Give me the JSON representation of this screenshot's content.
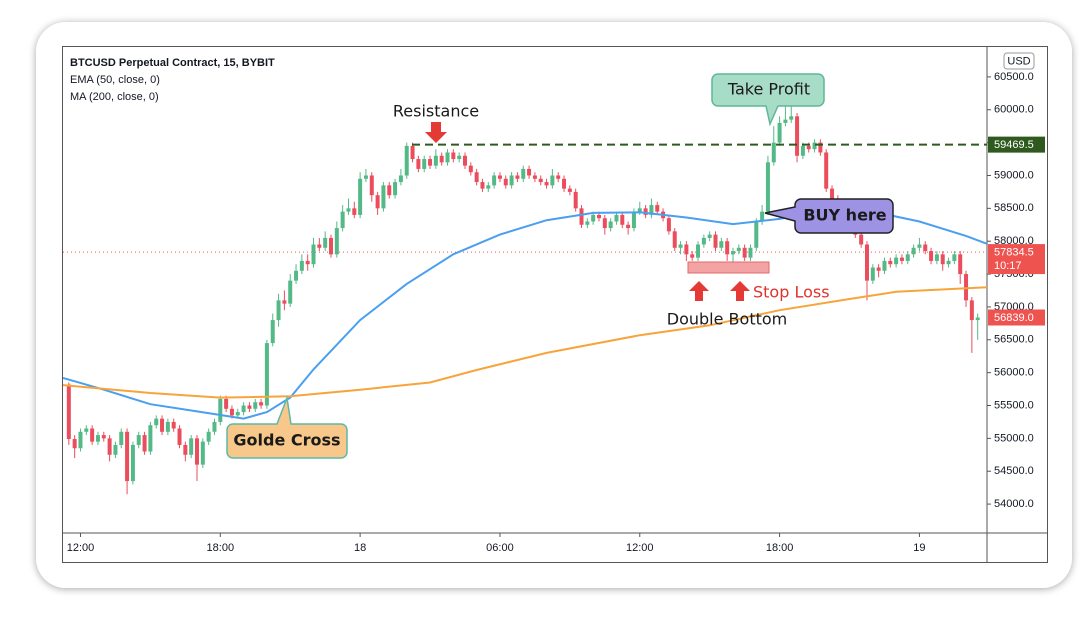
{
  "chart_data": {
    "type": "candlestick",
    "title": "BTCUSD Perpetual Contract, 15, BYBIT",
    "currency": "USD",
    "xlim": [
      -0.75,
      38.9
    ],
    "ylim": [
      53560,
      60955
    ],
    "grid": false,
    "xticks": [
      {
        "value": 0,
        "label": "12:00"
      },
      {
        "value": 6,
        "label": "18:00"
      },
      {
        "value": 12,
        "label": "18"
      },
      {
        "value": 18,
        "label": "06:00"
      },
      {
        "value": 24,
        "label": "12:00"
      },
      {
        "value": 30,
        "label": "18:00"
      },
      {
        "value": 36,
        "label": "19"
      }
    ],
    "yticks": [
      {
        "value": 54000,
        "label": "54000.0"
      },
      {
        "value": 54500,
        "label": "54500.0"
      },
      {
        "value": 55000,
        "label": "55000.0"
      },
      {
        "value": 55500,
        "label": "55500.0"
      },
      {
        "value": 56000,
        "label": "56000.0"
      },
      {
        "value": 56500,
        "label": "56500.0"
      },
      {
        "value": 57000,
        "label": "57000.0"
      },
      {
        "value": 57500,
        "label": "57500.0"
      },
      {
        "value": 58000,
        "label": "58000.0"
      },
      {
        "value": 58500,
        "label": "58500.0"
      },
      {
        "value": 59000,
        "label": "59000.0"
      },
      {
        "value": 59500,
        "label": "59500.0"
      },
      {
        "value": 60000,
        "label": "60000.0"
      },
      {
        "value": 60500,
        "label": "60500.0"
      }
    ],
    "up_color": "#53b987",
    "down_color": "#eb4d5c",
    "candles": {
      "x": [
        -0.5,
        -0.25,
        0,
        0.25,
        0.5,
        0.75,
        1,
        1.25,
        1.5,
        1.75,
        2,
        2.25,
        2.5,
        2.75,
        3,
        3.25,
        3.5,
        3.75,
        4,
        4.25,
        4.5,
        4.75,
        5,
        5.25,
        5.5,
        5.75,
        6,
        6.25,
        6.5,
        6.75,
        7,
        7.25,
        7.5,
        7.75,
        8,
        8.25,
        8.5,
        8.75,
        9,
        9.25,
        9.5,
        9.75,
        10,
        10.25,
        10.5,
        10.75,
        11,
        11.25,
        11.5,
        11.75,
        12,
        12.25,
        12.5,
        12.75,
        13,
        13.25,
        13.5,
        13.75,
        14,
        14.25,
        14.5,
        14.75,
        15,
        15.25,
        15.5,
        15.75,
        16,
        16.25,
        16.5,
        16.75,
        17,
        17.25,
        17.5,
        17.75,
        18,
        18.25,
        18.5,
        18.75,
        19,
        19.25,
        19.5,
        19.75,
        20,
        20.25,
        20.5,
        20.75,
        21,
        21.25,
        21.5,
        21.75,
        22,
        22.25,
        22.5,
        22.75,
        23,
        23.25,
        23.5,
        23.75,
        24,
        24.25,
        24.5,
        24.75,
        25,
        25.25,
        25.5,
        25.75,
        26,
        26.25,
        26.5,
        26.75,
        27,
        27.25,
        27.5,
        27.75,
        28,
        28.25,
        28.5,
        28.75,
        29,
        29.25,
        29.5,
        29.75,
        30,
        30.25,
        30.5,
        30.75,
        31,
        31.25,
        31.5,
        31.75,
        32,
        32.25,
        32.5,
        32.75,
        33,
        33.25,
        33.5,
        33.75,
        34,
        34.25,
        34.5,
        34.75,
        35,
        35.25,
        35.5,
        35.75,
        36,
        36.25,
        36.5,
        36.75,
        37,
        37.25,
        37.5,
        37.75,
        38,
        38.25,
        38.5
      ],
      "ohlc": [
        [
          55820,
          55850,
          54900,
          54990
        ],
        [
          54990,
          55050,
          54700,
          54850
        ],
        [
          54850,
          55150,
          54800,
          55100
        ],
        [
          55100,
          55200,
          55050,
          55150
        ],
        [
          55150,
          55200,
          54900,
          54950
        ],
        [
          54950,
          55100,
          54900,
          55050
        ],
        [
          55050,
          55100,
          54950,
          55000
        ],
        [
          55000,
          55050,
          54650,
          54750
        ],
        [
          54750,
          54950,
          54700,
          54900
        ],
        [
          54900,
          55150,
          54850,
          55100
        ],
        [
          55100,
          55150,
          54150,
          54350
        ],
        [
          54350,
          54950,
          54300,
          54900
        ],
        [
          54900,
          55100,
          54850,
          55050
        ],
        [
          55050,
          55100,
          54750,
          54800
        ],
        [
          54800,
          55250,
          54750,
          55200
        ],
        [
          55200,
          55350,
          55150,
          55300
        ],
        [
          55300,
          55350,
          55050,
          55100
        ],
        [
          55100,
          55300,
          55050,
          55250
        ],
        [
          55250,
          55300,
          55100,
          55150
        ],
        [
          55150,
          55200,
          54850,
          54900
        ],
        [
          54900,
          54950,
          54650,
          54750
        ],
        [
          54750,
          55050,
          54700,
          55000
        ],
        [
          55000,
          55050,
          54350,
          54600
        ],
        [
          54600,
          55000,
          54550,
          54950
        ],
        [
          54950,
          55150,
          54900,
          55100
        ],
        [
          55100,
          55300,
          55050,
          55250
        ],
        [
          55250,
          55650,
          55200,
          55600
        ],
        [
          55600,
          55650,
          55400,
          55450
        ],
        [
          55450,
          55500,
          55300,
          55350
        ],
        [
          55350,
          55450,
          55300,
          55400
        ],
        [
          55400,
          55550,
          55350,
          55500
        ],
        [
          55500,
          55550,
          55400,
          55450
        ],
        [
          55450,
          55600,
          55400,
          55550
        ],
        [
          55550,
          55600,
          55450,
          55500
        ],
        [
          55500,
          56500,
          55450,
          56450
        ],
        [
          56450,
          56900,
          56400,
          56800
        ],
        [
          56800,
          57200,
          56700,
          57100
        ],
        [
          57100,
          57250,
          56950,
          57050
        ],
        [
          57050,
          57500,
          57000,
          57400
        ],
        [
          57400,
          57650,
          57350,
          57550
        ],
        [
          57550,
          57800,
          57500,
          57700
        ],
        [
          57700,
          57800,
          57550,
          57650
        ],
        [
          57650,
          58050,
          57600,
          57950
        ],
        [
          57950,
          58050,
          57850,
          57900
        ],
        [
          57900,
          58150,
          57850,
          58050
        ],
        [
          58050,
          58100,
          57750,
          57800
        ],
        [
          57800,
          58300,
          57750,
          58200
        ],
        [
          58200,
          58550,
          58150,
          58450
        ],
        [
          58450,
          58650,
          58400,
          58500
        ],
        [
          58500,
          58600,
          58350,
          58400
        ],
        [
          58400,
          59050,
          58350,
          58950
        ],
        [
          58950,
          59100,
          58900,
          59000
        ],
        [
          59000,
          59050,
          58600,
          58700
        ],
        [
          58700,
          58750,
          58400,
          58500
        ],
        [
          58500,
          58900,
          58450,
          58850
        ],
        [
          58850,
          58900,
          58650,
          58700
        ],
        [
          58700,
          58950,
          58650,
          58900
        ],
        [
          58900,
          59100,
          58850,
          59000
        ],
        [
          59000,
          59500,
          58950,
          59450
        ],
        [
          59450,
          59500,
          59200,
          59250
        ],
        [
          59250,
          59300,
          59050,
          59100
        ],
        [
          59100,
          59300,
          59050,
          59250
        ],
        [
          59250,
          59300,
          59100,
          59150
        ],
        [
          59150,
          59400,
          59100,
          59300
        ],
        [
          59300,
          59350,
          59150,
          59200
        ],
        [
          59200,
          59400,
          59150,
          59350
        ],
        [
          59350,
          59400,
          59200,
          59250
        ],
        [
          59250,
          59350,
          59200,
          59300
        ],
        [
          59300,
          59350,
          59100,
          59150
        ],
        [
          59150,
          59200,
          59000,
          59050
        ],
        [
          59050,
          59100,
          58850,
          58900
        ],
        [
          58900,
          58950,
          58750,
          58800
        ],
        [
          58800,
          58900,
          58750,
          58850
        ],
        [
          58850,
          59050,
          58800,
          59000
        ],
        [
          59000,
          59050,
          58900,
          58950
        ],
        [
          58950,
          59000,
          58800,
          58850
        ],
        [
          58850,
          59050,
          58800,
          59000
        ],
        [
          59000,
          59050,
          58900,
          58950
        ],
        [
          58950,
          59150,
          58900,
          59100
        ],
        [
          59100,
          59150,
          58950,
          59000
        ],
        [
          59000,
          59050,
          58900,
          58950
        ],
        [
          58950,
          59000,
          58850,
          58900
        ],
        [
          58900,
          58950,
          58800,
          58850
        ],
        [
          58850,
          59100,
          58800,
          59000
        ],
        [
          59000,
          59050,
          58900,
          58950
        ],
        [
          58950,
          59000,
          58750,
          58800
        ],
        [
          58800,
          58850,
          58700,
          58750
        ],
        [
          58750,
          58800,
          58450,
          58500
        ],
        [
          58500,
          58550,
          58200,
          58250
        ],
        [
          58250,
          58350,
          58200,
          58300
        ],
        [
          58300,
          58450,
          58250,
          58400
        ],
        [
          58400,
          58450,
          58300,
          58350
        ],
        [
          58350,
          58400,
          58100,
          58200
        ],
        [
          58200,
          58350,
          58150,
          58300
        ],
        [
          58300,
          58450,
          58250,
          58400
        ],
        [
          58400,
          58450,
          58200,
          58250
        ],
        [
          58250,
          58300,
          58100,
          58200
        ],
        [
          58200,
          58500,
          58150,
          58450
        ],
        [
          58450,
          58600,
          58400,
          58500
        ],
        [
          58500,
          58550,
          58350,
          58400
        ],
        [
          58400,
          58650,
          58350,
          58550
        ],
        [
          58550,
          58600,
          58400,
          58450
        ],
        [
          58450,
          58500,
          58300,
          58350
        ],
        [
          58350,
          58400,
          58100,
          58150
        ],
        [
          58150,
          58200,
          57850,
          57900
        ],
        [
          57900,
          58000,
          57800,
          57950
        ],
        [
          57950,
          58000,
          57700,
          57800
        ],
        [
          57800,
          57850,
          57700,
          57750
        ],
        [
          57750,
          58000,
          57700,
          57950
        ],
        [
          57950,
          58100,
          57900,
          58050
        ],
        [
          58050,
          58150,
          58000,
          58100
        ],
        [
          58100,
          58150,
          57850,
          57900
        ],
        [
          57900,
          58050,
          57850,
          58000
        ],
        [
          58000,
          58050,
          57700,
          57800
        ],
        [
          57800,
          57900,
          57650,
          57850
        ],
        [
          57850,
          57950,
          57800,
          57900
        ],
        [
          57900,
          57950,
          57700,
          57750
        ],
        [
          57750,
          57950,
          57700,
          57900
        ],
        [
          57900,
          58350,
          57850,
          58300
        ],
        [
          58300,
          58550,
          58250,
          58450
        ],
        [
          58450,
          59300,
          58400,
          59200
        ],
        [
          59200,
          59750,
          59150,
          59500
        ],
        [
          59500,
          59900,
          59450,
          59800
        ],
        [
          59800,
          60050,
          59750,
          59850
        ],
        [
          59850,
          60150,
          59800,
          59900
        ],
        [
          59900,
          59950,
          59200,
          59300
        ],
        [
          59300,
          59500,
          59250,
          59450
        ],
        [
          59450,
          59500,
          59350,
          59400
        ],
        [
          59400,
          59550,
          59350,
          59500
        ],
        [
          59500,
          59550,
          59300,
          59350
        ],
        [
          59350,
          59400,
          58750,
          58800
        ],
        [
          58800,
          58850,
          58600,
          58650
        ],
        [
          58650,
          58700,
          58400,
          58450
        ],
        [
          58450,
          58500,
          58300,
          58400
        ],
        [
          58400,
          58450,
          58150,
          58200
        ],
        [
          58200,
          58250,
          58050,
          58100
        ],
        [
          58100,
          58150,
          57900,
          57950
        ],
        [
          57950,
          58000,
          57100,
          57400
        ],
        [
          57400,
          57650,
          57350,
          57600
        ],
        [
          57600,
          57650,
          57450,
          57550
        ],
        [
          57550,
          57750,
          57500,
          57700
        ],
        [
          57700,
          57750,
          57600,
          57650
        ],
        [
          57650,
          57800,
          57600,
          57750
        ],
        [
          57750,
          57800,
          57650,
          57700
        ],
        [
          57700,
          57850,
          57650,
          57800
        ],
        [
          57800,
          57950,
          57750,
          57900
        ],
        [
          57900,
          58050,
          57850,
          57950
        ],
        [
          57950,
          58000,
          57800,
          57850
        ],
        [
          57850,
          57900,
          57650,
          57700
        ],
        [
          57700,
          57850,
          57650,
          57800
        ],
        [
          57800,
          57850,
          57550,
          57650
        ],
        [
          57650,
          57750,
          57600,
          57700
        ],
        [
          57700,
          57850,
          57650,
          57800
        ],
        [
          57800,
          57850,
          57350,
          57500
        ],
        [
          57500,
          57550,
          57000,
          57100
        ],
        [
          57100,
          57150,
          56300,
          56800
        ],
        [
          56800,
          56900,
          56500,
          56839
        ]
      ]
    },
    "series": [
      {
        "name": "EMA (50, close, 0)",
        "color": "#4a9ff0",
        "x": [
          -0.75,
          1,
          3,
          5,
          7,
          8,
          9,
          10,
          12,
          14,
          16,
          18,
          20,
          22,
          24,
          26,
          28,
          30,
          32,
          34,
          36,
          38,
          38.9
        ],
        "values": [
          55920,
          55740,
          55520,
          55410,
          55300,
          55400,
          55620,
          56050,
          56800,
          57350,
          57800,
          58100,
          58320,
          58430,
          58440,
          58360,
          58260,
          58340,
          58480,
          58450,
          58300,
          58080,
          57960
        ]
      },
      {
        "name": "MA (200, close, 0)",
        "color": "#f7a43a",
        "x": [
          -0.75,
          3,
          6,
          9,
          12,
          15,
          17,
          20,
          24,
          27,
          30,
          33,
          35,
          38.9
        ],
        "values": [
          55810,
          55690,
          55620,
          55640,
          55740,
          55850,
          56040,
          56300,
          56570,
          56720,
          56950,
          57120,
          57230,
          57300
        ]
      }
    ],
    "resistance": {
      "value": 59469.5,
      "color": "#2f5a1f"
    },
    "mark_price": {
      "value": 57834.5,
      "countdown": "10:17",
      "color": "#ef5350"
    },
    "last_price": {
      "value": 56839,
      "label": "56839.0",
      "color": "#ef5350"
    },
    "annotations": {
      "resistance": "Resistance",
      "take_profit": "Take Profit",
      "buy": "BUY here",
      "cross": "Golde Cross",
      "stop_loss": "Stop Loss",
      "double_bottom": "Double Bottom"
    }
  }
}
